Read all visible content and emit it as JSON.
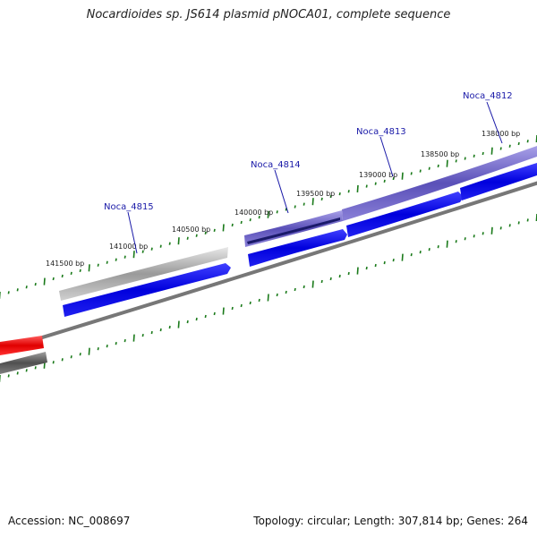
{
  "title": "Nocardioides sp. JS614 plasmid pNOCA01, complete sequence",
  "footer": {
    "accession": "Accession: NC_008697",
    "summary": "Topology: circular; Length: 307,814 bp; Genes: 264"
  },
  "colors": {
    "forward_cds": "#0000ee",
    "reverse_cds_light": "#c8c8c8",
    "reverse_cds_purple": "#6a60c8",
    "backbone": "#707070",
    "tick": "#1a7a1a",
    "gene_label": "#1a1aa8",
    "rrna": "#ee0000"
  },
  "genes": [
    {
      "name": "Noca_4812"
    },
    {
      "name": "Noca_4813"
    },
    {
      "name": "Noca_4814"
    },
    {
      "name": "Noca_4815"
    }
  ],
  "bp_labels": [
    "138000 bp",
    "138500 bp",
    "139000 bp",
    "139500 bp",
    "140000 bp",
    "140500 bp",
    "141000 bp",
    "141500 bp"
  ]
}
